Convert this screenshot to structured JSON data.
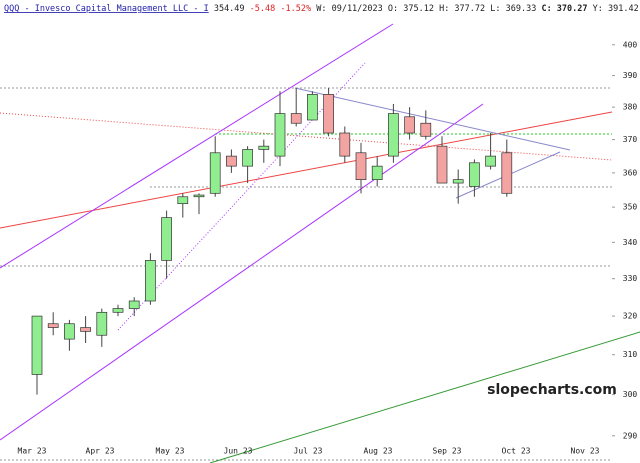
{
  "chart_data": {
    "type": "candlestick",
    "header": {
      "symbol": "QQQ - Invesco Capital Management LLC - I",
      "last": "354.49",
      "change": "-5.48",
      "change_pct": "-1.52%",
      "date": "W: 09/11/2023",
      "open": "O: 375.12",
      "high": "H: 377.72",
      "low": "L: 369.33",
      "close": "C: 370.27",
      "y": "Y: 391.42"
    },
    "watermark": "slopecharts.com",
    "x_labels": [
      "Mar 23",
      "Apr 23",
      "May 23",
      "Jun 23",
      "Jul 23",
      "Aug 23",
      "Sep 23",
      "Oct 23",
      "Nov 23"
    ],
    "open": [
      305,
      318,
      314,
      317,
      315,
      321,
      322,
      324,
      335,
      351,
      353,
      354,
      365,
      362,
      367,
      365,
      378,
      376,
      384,
      372,
      366,
      358,
      365,
      377,
      375,
      368,
      357,
      356,
      362,
      366
    ],
    "high": [
      320,
      321,
      319,
      320,
      322,
      323,
      325,
      337,
      349,
      354,
      354,
      371,
      367,
      368,
      370,
      385,
      386,
      385,
      386,
      374,
      369,
      365,
      381,
      380,
      379,
      371,
      361,
      364,
      372,
      370
    ],
    "low": [
      300,
      315,
      311,
      313,
      312,
      320,
      320,
      323,
      330,
      347,
      348,
      353,
      360,
      357,
      363,
      362,
      374,
      376,
      371,
      363,
      354,
      356,
      363,
      370,
      370,
      357,
      351,
      353,
      361,
      353
    ],
    "close": [
      320,
      317,
      318,
      316,
      321,
      322,
      324,
      335,
      347,
      353,
      353.5,
      366,
      362,
      367,
      368,
      378,
      375,
      384,
      372,
      365,
      358,
      362,
      378,
      372,
      371,
      357,
      358,
      363,
      365,
      354
    ],
    "up_color": "#90ee90",
    "down_color": "#f4a3a3",
    "ylim": [
      289,
      415
    ],
    "yticks": [
      290,
      300,
      310,
      320,
      330,
      340,
      350,
      360,
      370,
      380,
      390,
      400
    ],
    "log_scale": true
  }
}
